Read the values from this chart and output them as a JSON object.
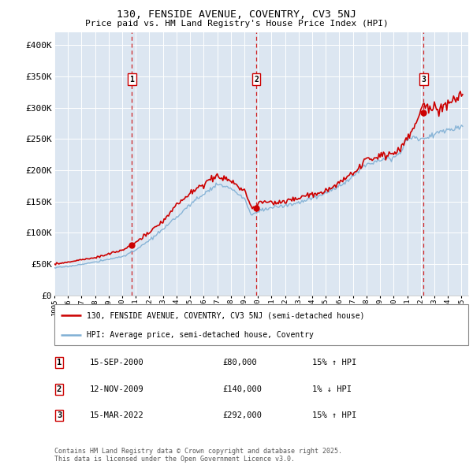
{
  "title_line1": "130, FENSIDE AVENUE, COVENTRY, CV3 5NJ",
  "title_line2": "Price paid vs. HM Land Registry's House Price Index (HPI)",
  "y_ticks": [
    0,
    50000,
    100000,
    150000,
    200000,
    250000,
    300000,
    350000,
    400000
  ],
  "y_tick_labels": [
    "£0",
    "£50K",
    "£100K",
    "£150K",
    "£200K",
    "£250K",
    "£300K",
    "£350K",
    "£400K"
  ],
  "sale_year_floats": [
    2000.708,
    2009.875,
    2022.208
  ],
  "sale_prices": [
    80000,
    140000,
    292000
  ],
  "sale_labels": [
    "1",
    "2",
    "3"
  ],
  "transaction_info": [
    {
      "label": "1",
      "date": "15-SEP-2000",
      "price": "£80,000",
      "hpi": "15% ↑ HPI"
    },
    {
      "label": "2",
      "date": "12-NOV-2009",
      "price": "£140,000",
      "hpi": "1% ↓ HPI"
    },
    {
      "label": "3",
      "date": "15-MAR-2022",
      "price": "£292,000",
      "hpi": "15% ↑ HPI"
    }
  ],
  "legend_line1": "130, FENSIDE AVENUE, COVENTRY, CV3 5NJ (semi-detached house)",
  "legend_line2": "HPI: Average price, semi-detached house, Coventry",
  "red_color": "#cc0000",
  "blue_color": "#7fafd4",
  "footer_text": "Contains HM Land Registry data © Crown copyright and database right 2025.\nThis data is licensed under the Open Government Licence v3.0.",
  "plot_bg_color": "#dce6f1"
}
